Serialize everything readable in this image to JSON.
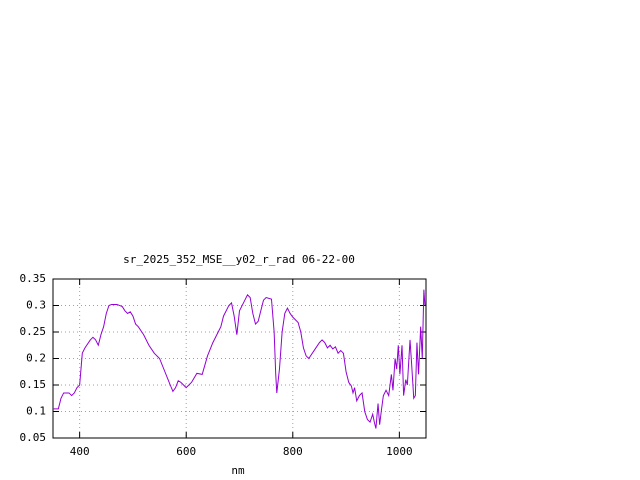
{
  "chart_data": {
    "type": "line",
    "title": "sr_2025_352_MSE__y02_r_rad 06-22-00",
    "x_label": "nm",
    "x": [
      350,
      360,
      365,
      370,
      380,
      385,
      390,
      395,
      400,
      405,
      410,
      420,
      425,
      430,
      435,
      440,
      445,
      450,
      455,
      460,
      470,
      480,
      485,
      490,
      495,
      500,
      505,
      510,
      520,
      530,
      540,
      550,
      560,
      570,
      575,
      580,
      585,
      590,
      600,
      610,
      620,
      630,
      640,
      650,
      660,
      665,
      670,
      680,
      685,
      690,
      695,
      700,
      710,
      715,
      720,
      725,
      730,
      735,
      740,
      745,
      750,
      760,
      765,
      768,
      770,
      775,
      780,
      785,
      790,
      795,
      800,
      810,
      815,
      820,
      825,
      830,
      840,
      850,
      855,
      860,
      865,
      870,
      875,
      880,
      885,
      890,
      895,
      900,
      905,
      910,
      913,
      916,
      920,
      925,
      930,
      935,
      940,
      945,
      950,
      953,
      956,
      960,
      963,
      966,
      970,
      975,
      980,
      985,
      988,
      992,
      995,
      998,
      1001,
      1005,
      1008,
      1012,
      1015,
      1020,
      1023,
      1027,
      1030,
      1033,
      1036,
      1040,
      1043,
      1046,
      1048
    ],
    "values": [
      0.105,
      0.105,
      0.125,
      0.135,
      0.135,
      0.13,
      0.135,
      0.145,
      0.15,
      0.21,
      0.22,
      0.235,
      0.24,
      0.235,
      0.225,
      0.245,
      0.26,
      0.285,
      0.3,
      0.302,
      0.302,
      0.298,
      0.29,
      0.285,
      0.288,
      0.28,
      0.265,
      0.26,
      0.245,
      0.225,
      0.21,
      0.2,
      0.175,
      0.15,
      0.138,
      0.145,
      0.158,
      0.155,
      0.145,
      0.155,
      0.172,
      0.17,
      0.205,
      0.23,
      0.25,
      0.26,
      0.28,
      0.3,
      0.305,
      0.28,
      0.245,
      0.29,
      0.31,
      0.32,
      0.315,
      0.285,
      0.265,
      0.27,
      0.29,
      0.31,
      0.315,
      0.312,
      0.25,
      0.17,
      0.135,
      0.18,
      0.25,
      0.285,
      0.295,
      0.285,
      0.278,
      0.268,
      0.25,
      0.22,
      0.205,
      0.2,
      0.215,
      0.23,
      0.235,
      0.23,
      0.22,
      0.225,
      0.218,
      0.222,
      0.21,
      0.215,
      0.21,
      0.175,
      0.155,
      0.148,
      0.135,
      0.145,
      0.12,
      0.13,
      0.135,
      0.1,
      0.085,
      0.08,
      0.095,
      0.08,
      0.068,
      0.115,
      0.075,
      0.1,
      0.13,
      0.14,
      0.13,
      0.17,
      0.14,
      0.2,
      0.18,
      0.225,
      0.17,
      0.225,
      0.13,
      0.16,
      0.15,
      0.235,
      0.19,
      0.125,
      0.13,
      0.23,
      0.17,
      0.26,
      0.2,
      0.33,
      0.3
    ],
    "color": "#9400d3",
    "xlim": [
      350,
      1050
    ],
    "xticks": [
      400,
      600,
      800,
      1000
    ],
    "ylim": [
      0.05,
      0.35
    ],
    "yticks": [
      0.05,
      0.1,
      0.15,
      0.2,
      0.25,
      0.3,
      0.35
    ],
    "grid": true
  }
}
